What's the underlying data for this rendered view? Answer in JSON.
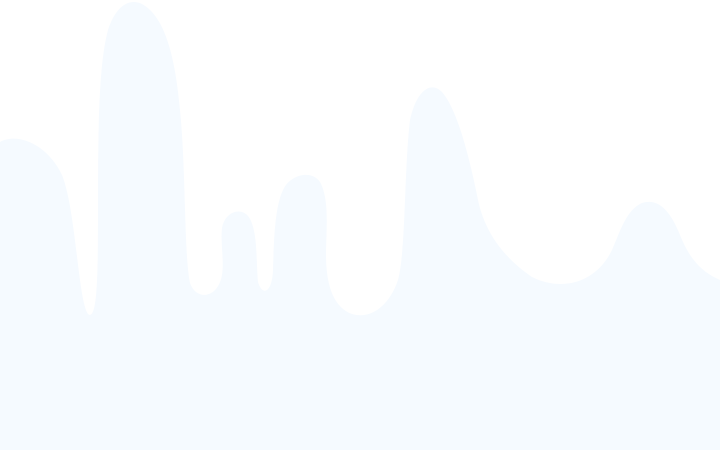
{
  "background": {
    "page_color": "#ffffff",
    "shape_color": "#f5faff",
    "shape_kind": "soft wavy peaks"
  }
}
